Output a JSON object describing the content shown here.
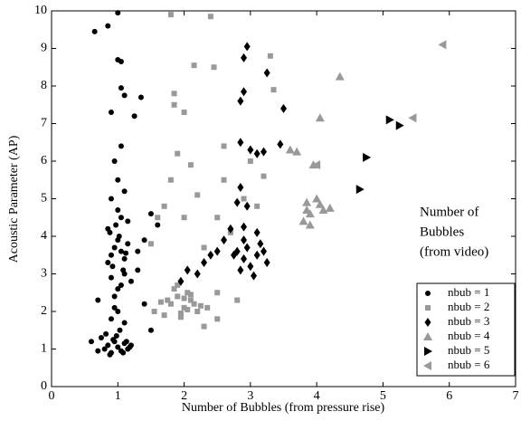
{
  "chart_data": {
    "type": "scatter",
    "xlabel": "Number of Bubbles (from pressure rise)",
    "ylabel": "Acoustic Parameter (AP)",
    "xlim": [
      0,
      7
    ],
    "ylim": [
      0,
      10
    ],
    "xticks": [
      0,
      1,
      2,
      3,
      4,
      5,
      6,
      7
    ],
    "yticks": [
      0,
      1,
      2,
      3,
      4,
      5,
      6,
      7,
      8,
      9,
      10
    ],
    "grid": false,
    "legend_position": "lower right",
    "legend_title": [
      "Number of",
      "Bubbles",
      "(from video)"
    ],
    "series": [
      {
        "name": "nbub = 1",
        "color": "#000000",
        "marker": "circle",
        "x": [
          0.65,
          0.85,
          1.0,
          1.0,
          1.05,
          1.05,
          1.1,
          1.35,
          1.25,
          0.9,
          1.05,
          0.95,
          1.0,
          0.9,
          1.1,
          1.5,
          1.6,
          1.4,
          1.3,
          0.6,
          1.5,
          1.4,
          0.7,
          1.2,
          0.85,
          0.9,
          0.95,
          1.0,
          1.05,
          1.1,
          1.15,
          0.88,
          0.92,
          0.97,
          1.02,
          1.08,
          1.12,
          0.9,
          1.0,
          1.1,
          0.95,
          1.05,
          0.8,
          0.85,
          0.9,
          0.95,
          1.0,
          1.05,
          1.1,
          1.15,
          1.2,
          0.75,
          0.82,
          0.88,
          0.93,
          0.98,
          1.03,
          1.08,
          1.13,
          1.18,
          0.9,
          1.0,
          1.1,
          0.95,
          1.05,
          1.0,
          0.85,
          1.15,
          1.3,
          0.7
        ],
        "y": [
          9.45,
          9.6,
          9.95,
          8.7,
          8.65,
          7.95,
          7.75,
          7.7,
          7.2,
          7.3,
          6.4,
          6.0,
          5.5,
          5.0,
          5.2,
          4.6,
          4.3,
          3.9,
          3.6,
          1.2,
          1.5,
          2.2,
          2.3,
          2.8,
          3.3,
          3.5,
          3.7,
          3.9,
          3.6,
          3.4,
          3.8,
          4.1,
          3.2,
          4.3,
          4.0,
          3.1,
          3.55,
          2.9,
          2.6,
          3.0,
          2.4,
          2.7,
          1.0,
          1.1,
          0.9,
          1.2,
          1.05,
          0.95,
          1.15,
          1.0,
          1.1,
          1.3,
          1.4,
          0.85,
          1.25,
          1.35,
          1.5,
          0.9,
          1.2,
          1.05,
          1.8,
          2.0,
          1.7,
          2.1,
          4.5,
          4.7,
          4.2,
          4.4,
          3.1,
          0.95
        ]
      },
      {
        "name": "nbub = 2",
        "color": "#999999",
        "marker": "square",
        "x": [
          1.8,
          2.4,
          2.15,
          2.45,
          1.85,
          1.85,
          2.0,
          1.9,
          2.1,
          1.8,
          2.2,
          1.7,
          2.0,
          1.5,
          2.3,
          2.6,
          2.6,
          2.9,
          3.1,
          3.35,
          3.3,
          3.2,
          3.0,
          2.5,
          1.55,
          2.8,
          2.5,
          1.7,
          2.3,
          2.5,
          2.7,
          1.6,
          1.8,
          1.9,
          2.0,
          2.1,
          2.2,
          1.85,
          1.95,
          2.05,
          2.15,
          2.25,
          1.75,
          2.35,
          1.9,
          2.0,
          2.1,
          1.95,
          2.05,
          1.65
        ],
        "y": [
          9.9,
          9.85,
          8.55,
          8.5,
          7.8,
          7.5,
          7.3,
          6.2,
          5.9,
          5.5,
          5.1,
          4.8,
          4.5,
          3.8,
          3.7,
          6.4,
          5.5,
          5.0,
          4.8,
          7.9,
          8.8,
          5.6,
          6.0,
          4.5,
          2.0,
          2.3,
          2.5,
          1.9,
          1.6,
          1.8,
          4.1,
          4.5,
          2.2,
          2.4,
          2.1,
          2.3,
          2.0,
          2.6,
          1.95,
          2.5,
          2.2,
          2.15,
          2.3,
          2.1,
          2.7,
          2.35,
          2.45,
          1.85,
          2.05,
          2.25
        ]
      },
      {
        "name": "nbub = 3",
        "color": "#000000",
        "marker": "diamond",
        "x": [
          2.95,
          2.9,
          3.25,
          2.9,
          2.85,
          3.5,
          3.45,
          3.0,
          3.1,
          3.2,
          2.85,
          2.85,
          2.8,
          2.95,
          2.7,
          2.9,
          3.1,
          2.5,
          2.6,
          2.3,
          2.4,
          2.2,
          1.95,
          2.05,
          2.8,
          2.9,
          3.0,
          3.1,
          3.2,
          2.95,
          2.85,
          3.05,
          3.25,
          2.75,
          3.15,
          2.9
        ],
        "y": [
          9.05,
          8.75,
          8.35,
          7.85,
          7.6,
          7.4,
          6.45,
          6.3,
          6.2,
          6.25,
          6.5,
          5.3,
          4.9,
          4.8,
          4.2,
          4.25,
          4.1,
          3.6,
          3.9,
          3.3,
          3.5,
          3.0,
          2.8,
          3.1,
          3.6,
          3.4,
          3.2,
          3.5,
          3.6,
          3.7,
          3.1,
          2.95,
          3.3,
          3.5,
          3.8,
          3.9
        ]
      },
      {
        "name": "nbub = 4",
        "color": "#999999",
        "marker": "triangle-up",
        "x": [
          4.35,
          4.05,
          3.6,
          3.7,
          3.95,
          4.0,
          3.85,
          4.05,
          3.9,
          3.8,
          3.85,
          4.1,
          4.2,
          3.9
        ],
        "y": [
          8.25,
          7.15,
          6.3,
          6.25,
          5.9,
          5.0,
          4.9,
          4.85,
          4.6,
          4.4,
          4.7,
          4.7,
          4.75,
          4.3
        ]
      },
      {
        "name": "nbub = 5",
        "color": "#000000",
        "marker": "triangle-right",
        "x": [
          5.1,
          5.25,
          4.75,
          4.65
        ],
        "y": [
          7.1,
          6.95,
          6.1,
          5.25
        ]
      },
      {
        "name": "nbub = 6",
        "color": "#999999",
        "marker": "triangle-left",
        "x": [
          5.9,
          5.45,
          4.0
        ],
        "y": [
          9.1,
          7.15,
          5.9
        ]
      }
    ]
  }
}
